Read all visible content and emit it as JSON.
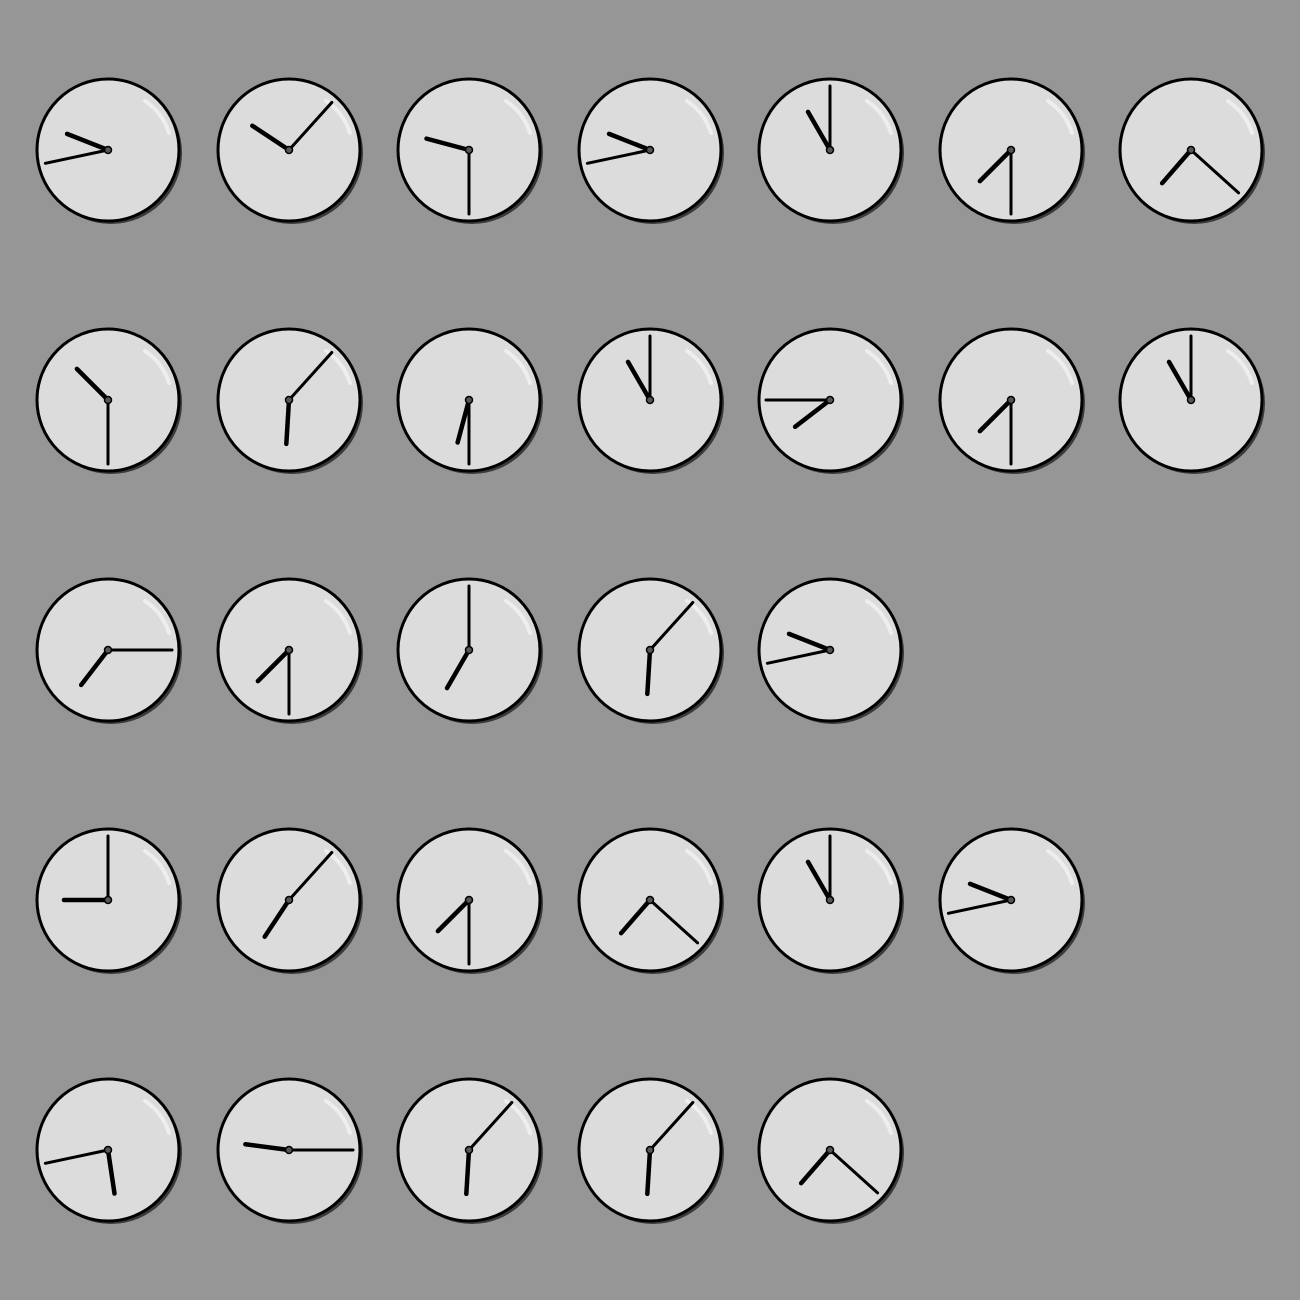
{
  "colors": {
    "background": "#969696",
    "face": "#dcdcdc",
    "rim": "#000000",
    "shadow": "#3a3a3a",
    "hand": "#000000",
    "pivot": "#555555"
  },
  "rows": [
    {
      "clocks": [
        {
          "hour": 9,
          "minute": 43
        },
        {
          "hour": 10,
          "minute": 7
        },
        {
          "hour": 9,
          "minute": 30
        },
        {
          "hour": 9,
          "minute": 43
        },
        {
          "hour": 11,
          "minute": 0
        },
        {
          "hour": 7,
          "minute": 30
        },
        {
          "hour": 7,
          "minute": 22
        }
      ]
    },
    {
      "clocks": [
        {
          "hour": 10,
          "minute": 30
        },
        {
          "hour": 6,
          "minute": 7
        },
        {
          "hour": 6,
          "minute": 30
        },
        {
          "hour": 11,
          "minute": 0
        },
        {
          "hour": 7,
          "minute": 45
        },
        {
          "hour": 7,
          "minute": 30
        },
        {
          "hour": 11,
          "minute": 0
        }
      ]
    },
    {
      "clocks": [
        {
          "hour": 7,
          "minute": 15
        },
        {
          "hour": 7,
          "minute": 30
        },
        {
          "hour": 7,
          "minute": 0
        },
        {
          "hour": 6,
          "minute": 7
        },
        {
          "hour": 9,
          "minute": 43
        }
      ]
    },
    {
      "clocks": [
        {
          "hour": 9,
          "minute": 0
        },
        {
          "hour": 7,
          "minute": 7
        },
        {
          "hour": 7,
          "minute": 30
        },
        {
          "hour": 7,
          "minute": 22
        },
        {
          "hour": 11,
          "minute": 0
        },
        {
          "hour": 9,
          "minute": 43
        }
      ]
    },
    {
      "clocks": [
        {
          "hour": 5,
          "minute": 43
        },
        {
          "hour": 9,
          "minute": 15
        },
        {
          "hour": 6,
          "minute": 7
        },
        {
          "hour": 6,
          "minute": 7
        },
        {
          "hour": 7,
          "minute": 22
        }
      ]
    }
  ]
}
